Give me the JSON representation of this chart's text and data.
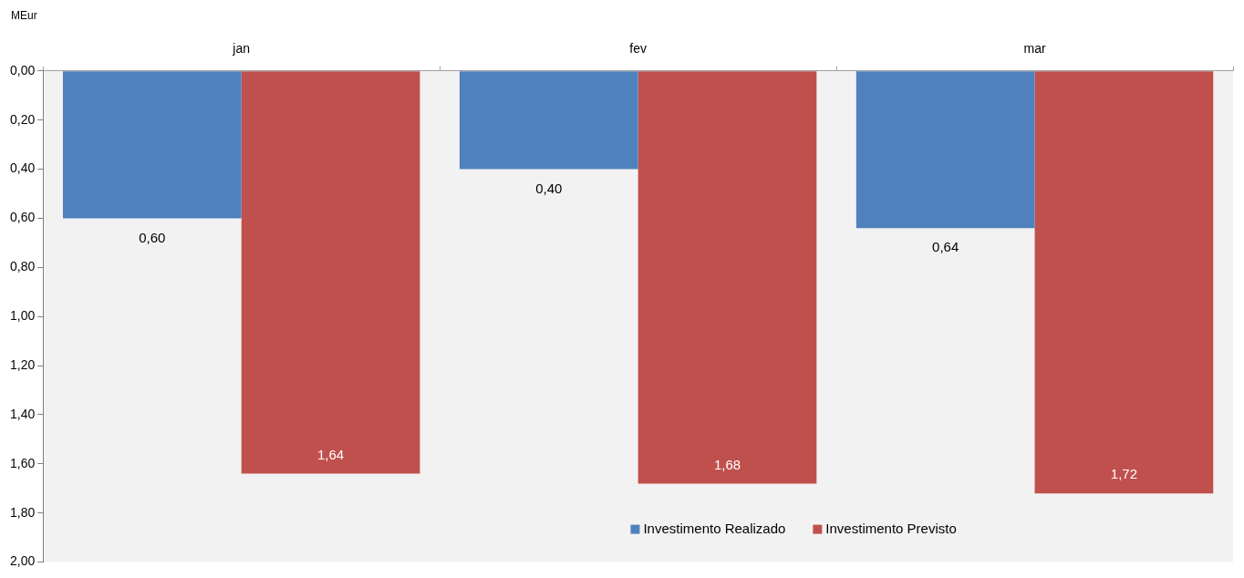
{
  "chart_data": {
    "type": "bar",
    "ylabel": "MEur",
    "categories": [
      "jan",
      "fev",
      "mar"
    ],
    "series": [
      {
        "name": "Investimento Realizado",
        "color": "#4f81bd",
        "values": [
          0.6,
          0.4,
          0.64
        ],
        "value_labels": [
          "0,60",
          "0,40",
          "0,64"
        ]
      },
      {
        "name": "Investimento Previsto",
        "color": "#c0504d",
        "values": [
          1.64,
          1.68,
          1.72
        ],
        "value_labels": [
          "1,64",
          "1,68",
          "1,72"
        ]
      }
    ],
    "ylim": [
      2,
      0
    ],
    "yticks": [
      {
        "value": 0,
        "label": "0,00"
      },
      {
        "value": 0.2,
        "label": "0,20"
      },
      {
        "value": 0.4,
        "label": "0,40"
      },
      {
        "value": 0.6,
        "label": "0,60"
      },
      {
        "value": 0.8,
        "label": "0,80"
      },
      {
        "value": 1,
        "label": "1,00"
      },
      {
        "value": 1.2,
        "label": "1,20"
      },
      {
        "value": 1.4,
        "label": "1,40"
      },
      {
        "value": 1.6,
        "label": "1,60"
      },
      {
        "value": 1.8,
        "label": "1,80"
      },
      {
        "value": 2,
        "label": "2,00"
      }
    ],
    "grid": false,
    "legend": "bottom"
  }
}
